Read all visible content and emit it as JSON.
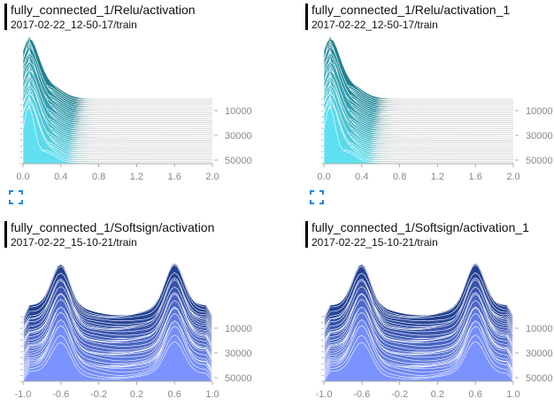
{
  "cards": [
    {
      "title": "fully_connected_1/Relu/activation",
      "subtitle": "2017-02-22_12-50-17/train",
      "palette": "cyan",
      "x_ticks": [
        "0.0",
        "0.4",
        "0.8",
        "1.2",
        "1.6",
        "2.0"
      ],
      "y_ticks": [
        "10000",
        "30000",
        "50000"
      ],
      "has_expand": true
    },
    {
      "title": "fully_connected_1/Relu/activation_1",
      "subtitle": "2017-02-22_12-50-17/train",
      "palette": "cyan",
      "x_ticks": [
        "0.0",
        "0.4",
        "0.8",
        "1.2",
        "1.6",
        "2.0"
      ],
      "y_ticks": [
        "10000",
        "30000",
        "50000"
      ],
      "has_expand": true
    },
    {
      "title": "fully_connected_1/Softsign/activation",
      "subtitle": "2017-02-22_15-10-21/train",
      "palette": "blue",
      "x_ticks": [
        "-1.0",
        "-0.6",
        "-0.2",
        "0.2",
        "0.6",
        "1.0"
      ],
      "y_ticks": [
        "10000",
        "30000",
        "50000"
      ],
      "has_expand": false
    },
    {
      "title": "fully_connected_1/Softsign/activation_1",
      "subtitle": "2017-02-22_15-10-21/train",
      "palette": "blue",
      "x_ticks": [
        "-1.0",
        "-0.6",
        "-0.2",
        "0.2",
        "0.6",
        "1.0"
      ],
      "y_ticks": [
        "10000",
        "30000",
        "50000"
      ],
      "has_expand": false
    }
  ],
  "colors": {
    "cyan_dark": "#1e7f8e",
    "cyan_light": "#5fe0f0",
    "blue_dark": "#1f3c8c",
    "blue_light": "#7b93ff",
    "expand_icon": "#1e88e5",
    "title_bar": "#000000"
  }
}
